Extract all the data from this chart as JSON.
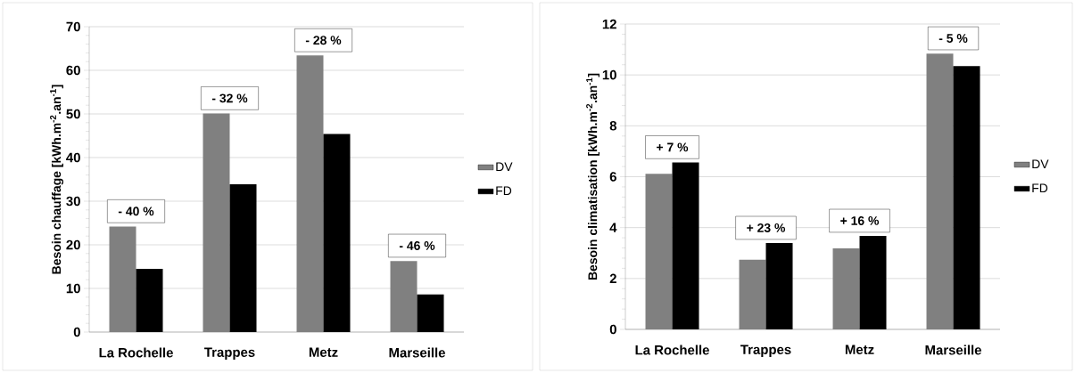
{
  "chart_data": [
    {
      "type": "bar",
      "ylabel": "Besoin chauffage [kWh.m$^{-2}$.an$^{-1}$]",
      "categories": [
        "La Rochelle",
        "Trappes",
        "Metz",
        "Marseille"
      ],
      "series": [
        {
          "name": "DV",
          "color": "#808080",
          "values": [
            24.2,
            50.1,
            63.4,
            16.3
          ]
        },
        {
          "name": "FD",
          "color": "#000000",
          "values": [
            14.5,
            33.9,
            45.4,
            8.6
          ]
        }
      ],
      "ylim": [
        0,
        70
      ],
      "yticks": [
        0,
        10,
        20,
        30,
        40,
        50,
        60,
        70
      ],
      "grid": "y",
      "legend": "right",
      "annotations": [
        "- 40 %",
        "- 32 %",
        "- 28 %",
        "- 46 %"
      ]
    },
    {
      "type": "bar",
      "ylabel": "Besoin climatisation [kWh.m$^{-2}$.an$^{-1}$]",
      "categories": [
        "La Rochelle",
        "Trappes",
        "Metz",
        "Marseille"
      ],
      "series": [
        {
          "name": "DV",
          "color": "#808080",
          "values": [
            6.11,
            2.74,
            3.18,
            10.84
          ]
        },
        {
          "name": "FD",
          "color": "#000000",
          "values": [
            6.56,
            3.39,
            3.67,
            10.35
          ]
        }
      ],
      "ylim": [
        0,
        12
      ],
      "yticks": [
        0,
        2,
        4,
        6,
        8,
        10,
        12
      ],
      "grid": "y",
      "legend": "right",
      "annotations": [
        "+ 7 %",
        "+ 23 %",
        "+ 16 %",
        "- 5 %"
      ]
    }
  ]
}
